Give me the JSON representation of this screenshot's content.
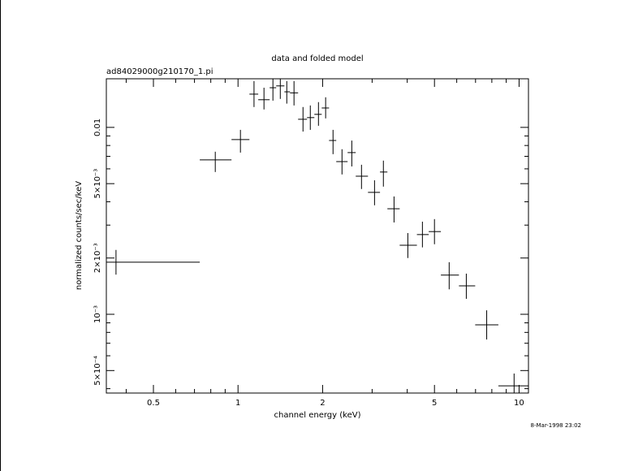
{
  "chart_data": {
    "type": "errorbar-scatter",
    "title": "data and folded model",
    "subtitle": "ad84029000g210170_1.pi",
    "x_label": "channel energy (keV)",
    "y_label": "normalized counts/sec/keV",
    "timestamp": "8-Mar-1998 23:02",
    "xscale": "log",
    "yscale": "log",
    "color": "#000000",
    "xlim": [
      0.34,
      10.8
    ],
    "ylim": [
      0.000379,
      0.0182
    ],
    "xticks": [
      0.5,
      1,
      2,
      5,
      10
    ],
    "xminorticks": [
      0.4,
      0.6,
      0.7,
      0.8,
      0.9,
      3,
      4,
      6,
      7,
      8,
      9
    ],
    "yticks": [
      {
        "value": 0.0005,
        "label": "5×10⁻⁴"
      },
      {
        "value": 0.001,
        "label": "10⁻³"
      },
      {
        "value": 0.002,
        "label": "2×10⁻³"
      },
      {
        "value": 0.005,
        "label": "5×10⁻³"
      },
      0.01
    ],
    "yminorticks": [
      0.0004,
      0.0006,
      0.0007,
      0.0008,
      0.0009,
      0.003,
      0.004,
      0.006,
      0.007,
      0.008,
      0.009
    ],
    "series": [
      {
        "x": [
          0.368,
          0.83,
          1.02,
          1.14,
          1.237,
          1.331,
          1.414,
          1.491,
          1.582,
          1.703,
          1.808,
          1.933,
          2.05,
          2.178,
          2.344,
          2.54,
          2.75,
          3.06,
          3.29,
          3.59,
          4.02,
          4.53,
          5.0,
          5.64,
          6.49,
          7.67,
          9.6
        ],
        "xmin": [
          0.34,
          0.731,
          0.948,
          1.098,
          1.18,
          1.296,
          1.367,
          1.462,
          1.531,
          1.636,
          1.76,
          1.869,
          1.985,
          2.108,
          2.236,
          2.454,
          2.623,
          2.9,
          3.2,
          3.4,
          3.76,
          4.33,
          4.77,
          5.27,
          6.11,
          6.98,
          8.44
        ],
        "xmax": [
          0.731,
          0.948,
          1.098,
          1.18,
          1.296,
          1.367,
          1.462,
          1.531,
          1.636,
          1.76,
          1.869,
          1.985,
          2.108,
          2.236,
          2.454,
          2.623,
          2.9,
          3.2,
          3.4,
          3.76,
          4.33,
          4.77,
          5.27,
          6.11,
          6.98,
          8.44,
          10.8
        ],
        "y": [
          0.0019,
          0.0067,
          0.0086,
          0.01506,
          0.01406,
          0.0163,
          0.01667,
          0.0155,
          0.0153,
          0.01105,
          0.01128,
          0.01174,
          0.0127,
          0.00851,
          0.00656,
          0.00733,
          0.00548,
          0.00449,
          0.00577,
          0.00367,
          0.00234,
          0.00267,
          0.00277,
          0.00162,
          0.00142,
          0.000878,
          0.000414
        ],
        "ymin": [
          0.00163,
          0.00577,
          0.00733,
          0.01285,
          0.01247,
          0.0139,
          0.0142,
          0.0134,
          0.0131,
          0.0095,
          0.0097,
          0.0102,
          0.01117,
          0.00719,
          0.0056,
          0.00618,
          0.00468,
          0.00383,
          0.00482,
          0.0031,
          0.002,
          0.00228,
          0.00237,
          0.00136,
          0.00121,
          0.000733,
          0.00035
        ],
        "ymax": [
          0.00221,
          0.00741,
          0.0097,
          0.0177,
          0.0163,
          0.0182,
          0.0182,
          0.0177,
          0.0177,
          0.01285,
          0.0131,
          0.01365,
          0.01449,
          0.0097,
          0.00764,
          0.0085,
          0.00631,
          0.00521,
          0.00664,
          0.00427,
          0.00272,
          0.00313,
          0.00323,
          0.0019,
          0.00165,
          0.00105,
          0.000482
        ]
      }
    ]
  }
}
